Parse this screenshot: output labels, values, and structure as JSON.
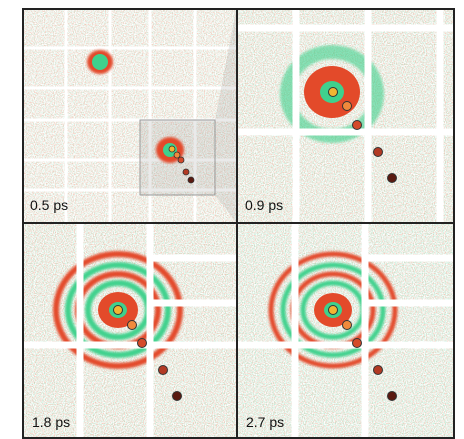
{
  "panels": [
    {
      "label": "0.5 ps"
    },
    {
      "label": "0.9 ps"
    },
    {
      "label": "1.8 ps"
    },
    {
      "label": "2.7 ps"
    }
  ]
}
